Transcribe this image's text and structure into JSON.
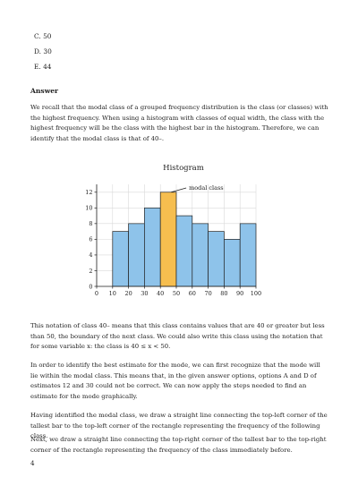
{
  "options": [
    {
      "letter": "C.",
      "value": "50"
    },
    {
      "letter": "D.",
      "value": "30"
    },
    {
      "letter": "E.",
      "value": "44"
    }
  ],
  "answer_heading": "Answer",
  "paragraphs": [
    "We recall that the modal class of a grouped frequency distribution is the class (or classes) with the highest frequency. When using a histogram with classes of equal width, the class with the highest frequency will be the class with the highest bar in the histogram. Therefore, we can identify that the modal class is that of 40–.",
    "This notation of class 40– means that this class contains values that are 40 or greater but less than 50, the boundary of the next class. We could also write this class using the notation that for some variable x: the class is 40 ≤ x < 50.",
    "In order to identify the best estimate for the mode, we can first recognize that the mode will lie within the modal class. This means that, in the given answer options, options A and D of estimates 12 and 30 could not be correct. We can now apply the steps needed to find an estimate for the mode graphically.",
    "Having identified the modal class, we draw a straight line connecting the top-left corner of the tallest bar to the top-left corner of the rectangle representing the frequency of the following class.",
    "Next, we draw a straight line connecting the top-right corner of the tallest bar to the top-right corner of the rectangle representing the frequency of the class immediately before."
  ],
  "page_number": "4",
  "chart_data": {
    "type": "bar",
    "title": "Histogram",
    "class_edges": [
      0,
      10,
      20,
      30,
      40,
      50,
      60,
      70,
      80,
      90,
      100
    ],
    "x_ticks": [
      "0",
      "10",
      "20",
      "30",
      "40",
      "50",
      "60",
      "70",
      "80",
      "90",
      "100"
    ],
    "y_ticks": [
      "0",
      "2",
      "4",
      "6",
      "8",
      "10",
      "12"
    ],
    "bars": [
      {
        "start": 10,
        "end": 20,
        "value": 7
      },
      {
        "start": 20,
        "end": 30,
        "value": 8
      },
      {
        "start": 30,
        "end": 40,
        "value": 10
      },
      {
        "start": 40,
        "end": 50,
        "value": 12,
        "highlight": true
      },
      {
        "start": 50,
        "end": 60,
        "value": 9
      },
      {
        "start": 60,
        "end": 70,
        "value": 8
      },
      {
        "start": 70,
        "end": 80,
        "value": 7
      },
      {
        "start": 80,
        "end": 90,
        "value": 6
      },
      {
        "start": 90,
        "end": 100,
        "value": 8
      }
    ],
    "xlim": [
      0,
      100
    ],
    "ylim": [
      0,
      13
    ],
    "grid": true,
    "annotation": "modal class",
    "colors": {
      "bar": "#8ec3ea",
      "highlight": "#f6be4f",
      "edge": "#222222",
      "grid": "#d9d9d9"
    }
  }
}
